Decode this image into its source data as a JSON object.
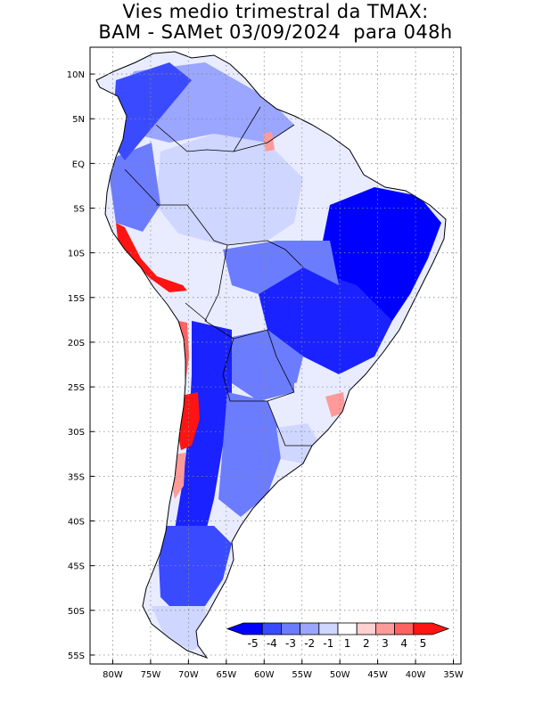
{
  "title": {
    "line1": "Vies medio trimestral da TMAX:",
    "line2": "BAM - SAMet 03/09/2024  para 048h"
  },
  "map": {
    "region": "South America",
    "lon_range": [
      -83,
      -34
    ],
    "lat_range": [
      13,
      -56
    ],
    "grid": "dotted",
    "x_ticks": [
      "80W",
      "75W",
      "70W",
      "65W",
      "60W",
      "55W",
      "50W",
      "45W",
      "40W",
      "35W"
    ],
    "y_ticks": [
      "10N",
      "5N",
      "EQ",
      "5S",
      "10S",
      "15S",
      "20S",
      "25S",
      "30S",
      "35S",
      "40S",
      "45S",
      "50S",
      "55S"
    ]
  },
  "colorbar": {
    "labels": [
      "-5",
      "-4",
      "-3",
      "-2",
      "-1",
      "1",
      "2",
      "3",
      "4",
      "5"
    ],
    "colors": [
      "#0000ff",
      "#3a4bff",
      "#6b7cff",
      "#9aa6ff",
      "#cfd6ff",
      "#ffffff",
      "#ffd0d0",
      "#ff9a9a",
      "#ff6262",
      "#ff1414"
    ],
    "position": "bottom-right inside map"
  }
}
